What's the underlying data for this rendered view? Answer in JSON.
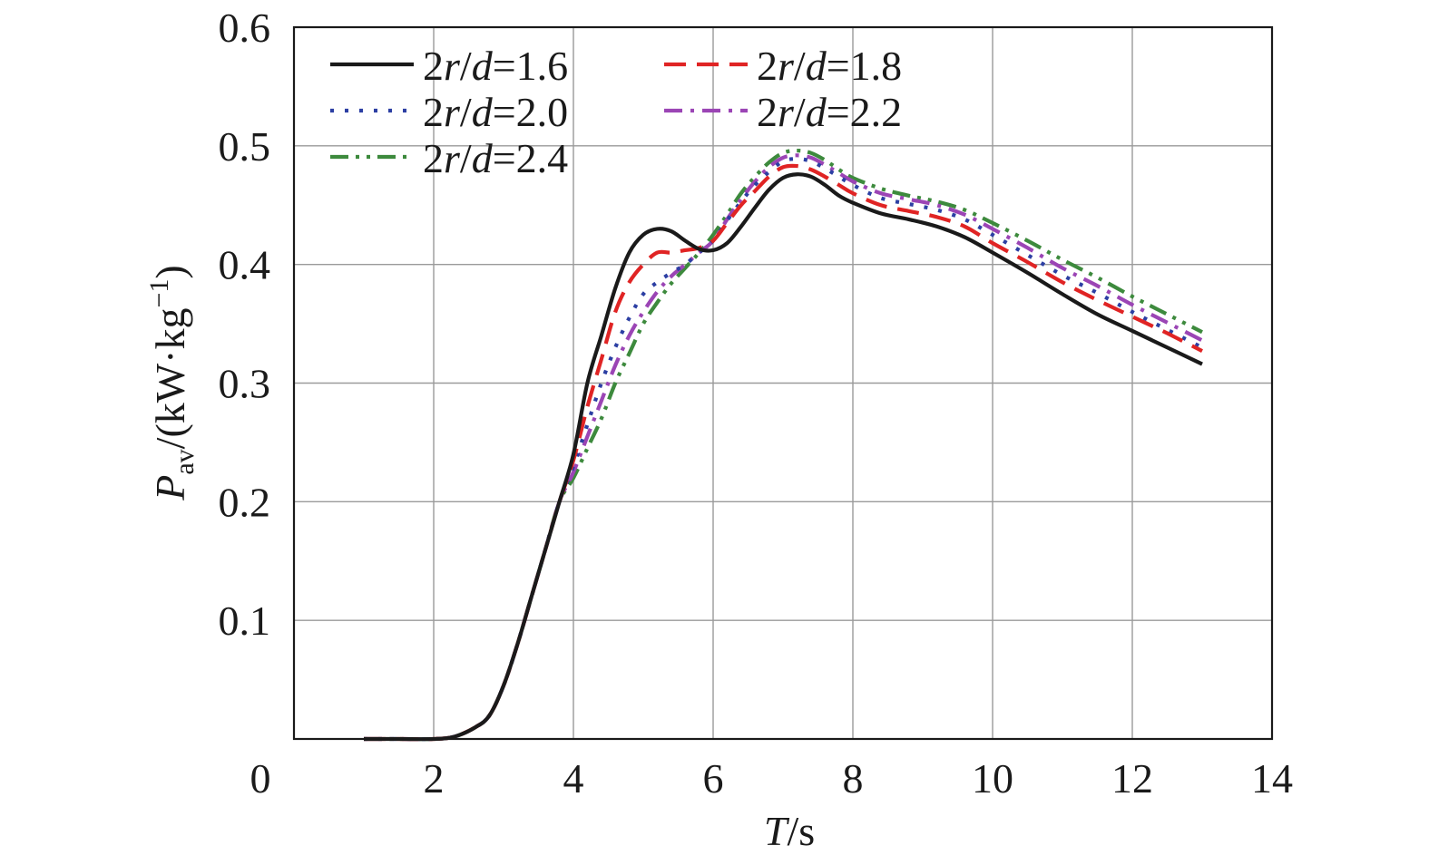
{
  "chart_data": {
    "type": "line",
    "title": "",
    "xlabel": {
      "symbol": "T",
      "unit": "/s"
    },
    "ylabel": {
      "symbol": "P",
      "subscript": "av",
      "unit_open": "/(kW·kg",
      "unit_exp": "−1",
      "unit_close": ")"
    },
    "xlim": [
      0,
      14
    ],
    "ylim": [
      0,
      0.6
    ],
    "x_ticks": [
      0,
      2,
      4,
      6,
      8,
      10,
      12,
      14
    ],
    "x_tick_labels": [
      "0",
      "2",
      "4",
      "6",
      "8",
      "10",
      "12",
      "14"
    ],
    "y_ticks": [
      0.1,
      0.2,
      0.3,
      0.4,
      0.5,
      0.6
    ],
    "y_tick_labels": [
      "0.1",
      "0.2",
      "0.3",
      "0.4",
      "0.5",
      "0.6"
    ],
    "grid": true,
    "legend_position": "top-left",
    "series": [
      {
        "name": "2r/d=1.6",
        "legend_parts": [
          "2",
          "r",
          "/",
          "d",
          "=1.6"
        ],
        "color": "#1a1a1a",
        "dash": "solid",
        "points": [
          [
            1.0,
            0.0
          ],
          [
            1.5,
            0.0
          ],
          [
            2.0,
            0.0
          ],
          [
            2.3,
            0.002
          ],
          [
            2.6,
            0.01
          ],
          [
            2.8,
            0.02
          ],
          [
            3.0,
            0.045
          ],
          [
            3.2,
            0.08
          ],
          [
            3.4,
            0.12
          ],
          [
            3.6,
            0.16
          ],
          [
            3.8,
            0.2
          ],
          [
            4.0,
            0.24
          ],
          [
            4.2,
            0.3
          ],
          [
            4.4,
            0.34
          ],
          [
            4.6,
            0.38
          ],
          [
            4.8,
            0.41
          ],
          [
            5.0,
            0.425
          ],
          [
            5.2,
            0.43
          ],
          [
            5.4,
            0.428
          ],
          [
            5.6,
            0.42
          ],
          [
            5.8,
            0.413
          ],
          [
            6.0,
            0.412
          ],
          [
            6.2,
            0.418
          ],
          [
            6.4,
            0.432
          ],
          [
            6.6,
            0.448
          ],
          [
            6.8,
            0.463
          ],
          [
            7.0,
            0.473
          ],
          [
            7.2,
            0.476
          ],
          [
            7.4,
            0.474
          ],
          [
            7.6,
            0.467
          ],
          [
            7.8,
            0.458
          ],
          [
            8.0,
            0.452
          ],
          [
            8.4,
            0.443
          ],
          [
            8.8,
            0.438
          ],
          [
            9.2,
            0.432
          ],
          [
            9.6,
            0.423
          ],
          [
            10.0,
            0.41
          ],
          [
            10.5,
            0.393
          ],
          [
            11.0,
            0.375
          ],
          [
            11.5,
            0.358
          ],
          [
            12.0,
            0.344
          ],
          [
            12.5,
            0.33
          ],
          [
            13.0,
            0.316
          ]
        ]
      },
      {
        "name": "2r/d=1.8",
        "legend_parts": [
          "2",
          "r",
          "/",
          "d",
          "=1.8"
        ],
        "color": "#e02424",
        "dash": "long-dash",
        "points": [
          [
            1.0,
            0.0
          ],
          [
            1.5,
            0.0
          ],
          [
            2.0,
            0.0
          ],
          [
            2.3,
            0.002
          ],
          [
            2.6,
            0.01
          ],
          [
            2.8,
            0.02
          ],
          [
            3.0,
            0.045
          ],
          [
            3.2,
            0.08
          ],
          [
            3.4,
            0.12
          ],
          [
            3.6,
            0.16
          ],
          [
            3.8,
            0.2
          ],
          [
            4.0,
            0.235
          ],
          [
            4.2,
            0.28
          ],
          [
            4.4,
            0.32
          ],
          [
            4.6,
            0.36
          ],
          [
            4.8,
            0.385
          ],
          [
            5.0,
            0.4
          ],
          [
            5.2,
            0.41
          ],
          [
            5.4,
            0.41
          ],
          [
            5.6,
            0.412
          ],
          [
            5.8,
            0.414
          ],
          [
            6.0,
            0.42
          ],
          [
            6.2,
            0.435
          ],
          [
            6.4,
            0.45
          ],
          [
            6.6,
            0.462
          ],
          [
            6.8,
            0.474
          ],
          [
            7.0,
            0.482
          ],
          [
            7.2,
            0.483
          ],
          [
            7.4,
            0.48
          ],
          [
            7.6,
            0.474
          ],
          [
            7.8,
            0.467
          ],
          [
            8.0,
            0.46
          ],
          [
            8.4,
            0.45
          ],
          [
            8.8,
            0.445
          ],
          [
            9.2,
            0.44
          ],
          [
            9.6,
            0.432
          ],
          [
            10.0,
            0.418
          ],
          [
            10.5,
            0.402
          ],
          [
            11.0,
            0.385
          ],
          [
            11.5,
            0.37
          ],
          [
            12.0,
            0.356
          ],
          [
            12.5,
            0.342
          ],
          [
            13.0,
            0.327
          ]
        ]
      },
      {
        "name": "2r/d=2.0",
        "legend_parts": [
          "2",
          "r",
          "/",
          "d",
          "=2.0"
        ],
        "color": "#2c3fa3",
        "dash": "dotted",
        "points": [
          [
            1.0,
            0.0
          ],
          [
            1.5,
            0.0
          ],
          [
            2.0,
            0.0
          ],
          [
            2.3,
            0.002
          ],
          [
            2.6,
            0.01
          ],
          [
            2.8,
            0.02
          ],
          [
            3.0,
            0.045
          ],
          [
            3.2,
            0.08
          ],
          [
            3.4,
            0.12
          ],
          [
            3.6,
            0.16
          ],
          [
            3.8,
            0.2
          ],
          [
            4.0,
            0.23
          ],
          [
            4.2,
            0.265
          ],
          [
            4.4,
            0.3
          ],
          [
            4.6,
            0.33
          ],
          [
            4.8,
            0.355
          ],
          [
            5.0,
            0.375
          ],
          [
            5.2,
            0.385
          ],
          [
            5.4,
            0.393
          ],
          [
            5.6,
            0.4
          ],
          [
            5.8,
            0.41
          ],
          [
            6.0,
            0.42
          ],
          [
            6.2,
            0.437
          ],
          [
            6.4,
            0.453
          ],
          [
            6.6,
            0.467
          ],
          [
            6.8,
            0.478
          ],
          [
            7.0,
            0.487
          ],
          [
            7.2,
            0.489
          ],
          [
            7.4,
            0.487
          ],
          [
            7.6,
            0.481
          ],
          [
            7.8,
            0.474
          ],
          [
            8.0,
            0.467
          ],
          [
            8.4,
            0.456
          ],
          [
            8.8,
            0.451
          ],
          [
            9.2,
            0.446
          ],
          [
            9.6,
            0.438
          ],
          [
            10.0,
            0.425
          ],
          [
            10.5,
            0.408
          ],
          [
            11.0,
            0.391
          ],
          [
            11.5,
            0.376
          ],
          [
            12.0,
            0.36
          ],
          [
            12.5,
            0.345
          ],
          [
            13.0,
            0.33
          ]
        ]
      },
      {
        "name": "2r/d=2.2",
        "legend_parts": [
          "2",
          "r",
          "/",
          "d",
          "=2.2"
        ],
        "color": "#9b45b5",
        "dash": "dash-dot",
        "points": [
          [
            1.0,
            0.0
          ],
          [
            1.5,
            0.0
          ],
          [
            2.0,
            0.0
          ],
          [
            2.3,
            0.002
          ],
          [
            2.6,
            0.01
          ],
          [
            2.8,
            0.02
          ],
          [
            3.0,
            0.045
          ],
          [
            3.2,
            0.08
          ],
          [
            3.4,
            0.12
          ],
          [
            3.6,
            0.16
          ],
          [
            3.8,
            0.2
          ],
          [
            4.0,
            0.225
          ],
          [
            4.2,
            0.255
          ],
          [
            4.4,
            0.285
          ],
          [
            4.6,
            0.315
          ],
          [
            4.8,
            0.34
          ],
          [
            5.0,
            0.36
          ],
          [
            5.2,
            0.377
          ],
          [
            5.4,
            0.39
          ],
          [
            5.6,
            0.4
          ],
          [
            5.8,
            0.41
          ],
          [
            6.0,
            0.42
          ],
          [
            6.2,
            0.438
          ],
          [
            6.4,
            0.455
          ],
          [
            6.6,
            0.47
          ],
          [
            6.8,
            0.482
          ],
          [
            7.0,
            0.49
          ],
          [
            7.2,
            0.492
          ],
          [
            7.4,
            0.49
          ],
          [
            7.6,
            0.484
          ],
          [
            7.8,
            0.477
          ],
          [
            8.0,
            0.47
          ],
          [
            8.4,
            0.46
          ],
          [
            8.8,
            0.455
          ],
          [
            9.2,
            0.45
          ],
          [
            9.6,
            0.442
          ],
          [
            10.0,
            0.43
          ],
          [
            10.5,
            0.414
          ],
          [
            11.0,
            0.397
          ],
          [
            11.5,
            0.382
          ],
          [
            12.0,
            0.366
          ],
          [
            12.5,
            0.351
          ],
          [
            13.0,
            0.336
          ]
        ]
      },
      {
        "name": "2r/d=2.4",
        "legend_parts": [
          "2",
          "r",
          "/",
          "d",
          "=2.4"
        ],
        "color": "#3d8a3d",
        "dash": "dash-dot-dot",
        "points": [
          [
            1.0,
            0.0
          ],
          [
            1.5,
            0.0
          ],
          [
            2.0,
            0.0
          ],
          [
            2.3,
            0.002
          ],
          [
            2.6,
            0.01
          ],
          [
            2.8,
            0.02
          ],
          [
            3.0,
            0.045
          ],
          [
            3.2,
            0.08
          ],
          [
            3.4,
            0.12
          ],
          [
            3.6,
            0.16
          ],
          [
            3.8,
            0.2
          ],
          [
            4.0,
            0.22
          ],
          [
            4.2,
            0.245
          ],
          [
            4.4,
            0.27
          ],
          [
            4.6,
            0.3
          ],
          [
            4.8,
            0.325
          ],
          [
            5.0,
            0.35
          ],
          [
            5.2,
            0.368
          ],
          [
            5.4,
            0.384
          ],
          [
            5.6,
            0.397
          ],
          [
            5.8,
            0.41
          ],
          [
            6.0,
            0.425
          ],
          [
            6.2,
            0.442
          ],
          [
            6.4,
            0.46
          ],
          [
            6.6,
            0.474
          ],
          [
            6.8,
            0.486
          ],
          [
            7.0,
            0.494
          ],
          [
            7.2,
            0.496
          ],
          [
            7.4,
            0.494
          ],
          [
            7.6,
            0.488
          ],
          [
            7.8,
            0.48
          ],
          [
            8.0,
            0.473
          ],
          [
            8.4,
            0.464
          ],
          [
            8.8,
            0.458
          ],
          [
            9.2,
            0.453
          ],
          [
            9.6,
            0.446
          ],
          [
            10.0,
            0.435
          ],
          [
            10.5,
            0.42
          ],
          [
            11.0,
            0.404
          ],
          [
            11.5,
            0.389
          ],
          [
            12.0,
            0.373
          ],
          [
            12.5,
            0.358
          ],
          [
            13.0,
            0.343
          ]
        ]
      }
    ]
  }
}
